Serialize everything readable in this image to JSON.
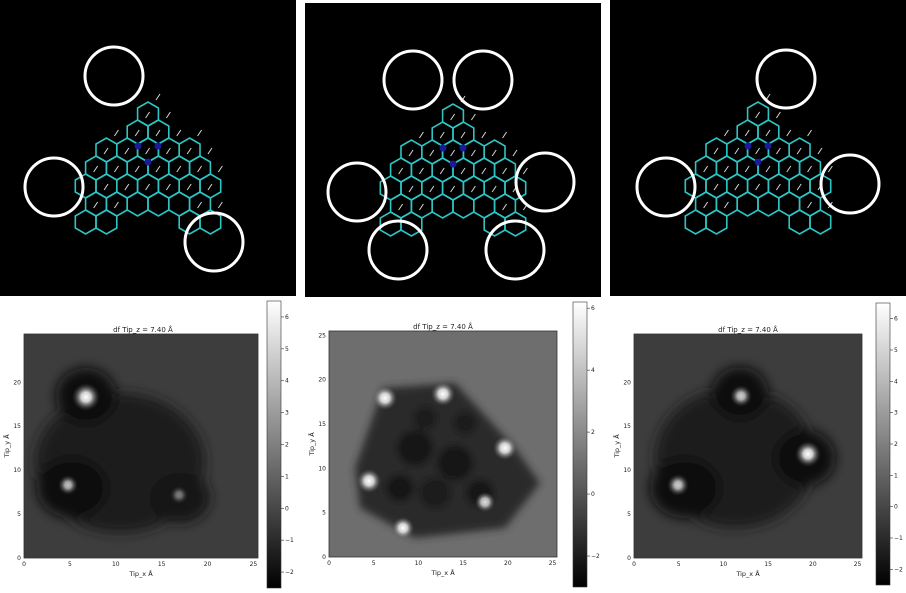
{
  "panels": [
    {
      "molecule": {
        "circles": 3
      },
      "plot": {
        "title": "df Tip_z = 7.40 Å",
        "xlabel": "Tip_x Å",
        "ylabel": "Tip_y Å",
        "xticks": [
          "0",
          "5",
          "10",
          "15",
          "20",
          "25"
        ],
        "yticks": [
          "0",
          "5",
          "10",
          "15",
          "20"
        ],
        "colorbar_ticks": [
          "6",
          "5",
          "4",
          "3",
          "2",
          "1",
          "0",
          "−1",
          "−2"
        ],
        "colorbar_values": [
          6,
          5,
          4,
          3,
          2,
          1,
          0,
          -1,
          -2
        ],
        "colorbar_range": [
          -2.5,
          6.5
        ]
      }
    },
    {
      "molecule": {
        "circles": 6
      },
      "plot": {
        "title": "df Tip_z = 7.40 Å",
        "xlabel": "Tip_x Å",
        "ylabel": "Tip_y Å",
        "xticks": [
          "0",
          "5",
          "10",
          "15",
          "20",
          "25"
        ],
        "yticks": [
          "0",
          "5",
          "10",
          "15",
          "20",
          "25"
        ],
        "colorbar_ticks": [
          "6",
          "4",
          "2",
          "0",
          "−2"
        ],
        "colorbar_values": [
          6,
          4,
          2,
          0,
          -2
        ],
        "colorbar_range": [
          -3,
          6.2
        ]
      }
    },
    {
      "molecule": {
        "circles": 3
      },
      "plot": {
        "title": "df Tip_z = 7.40 Å",
        "xlabel": "Tip_x Å",
        "ylabel": "Tip_y Å",
        "xticks": [
          "0",
          "5",
          "10",
          "15",
          "20",
          "25"
        ],
        "yticks": [
          "0",
          "5",
          "10",
          "15",
          "20"
        ],
        "colorbar_ticks": [
          "6",
          "5",
          "4",
          "3",
          "2",
          "1",
          "0",
          "−1",
          "−2"
        ],
        "colorbar_values": [
          6,
          5,
          4,
          3,
          2,
          1,
          0,
          -1,
          -2
        ],
        "colorbar_range": [
          -2.5,
          6.5
        ]
      }
    }
  ],
  "colors": {
    "carbon_bond": "#2ec4c4",
    "hydrogen_bond": "#d8d8d8",
    "nitrogen": "#1a1a9a",
    "circle": "#ffffff",
    "background": "#000000"
  }
}
